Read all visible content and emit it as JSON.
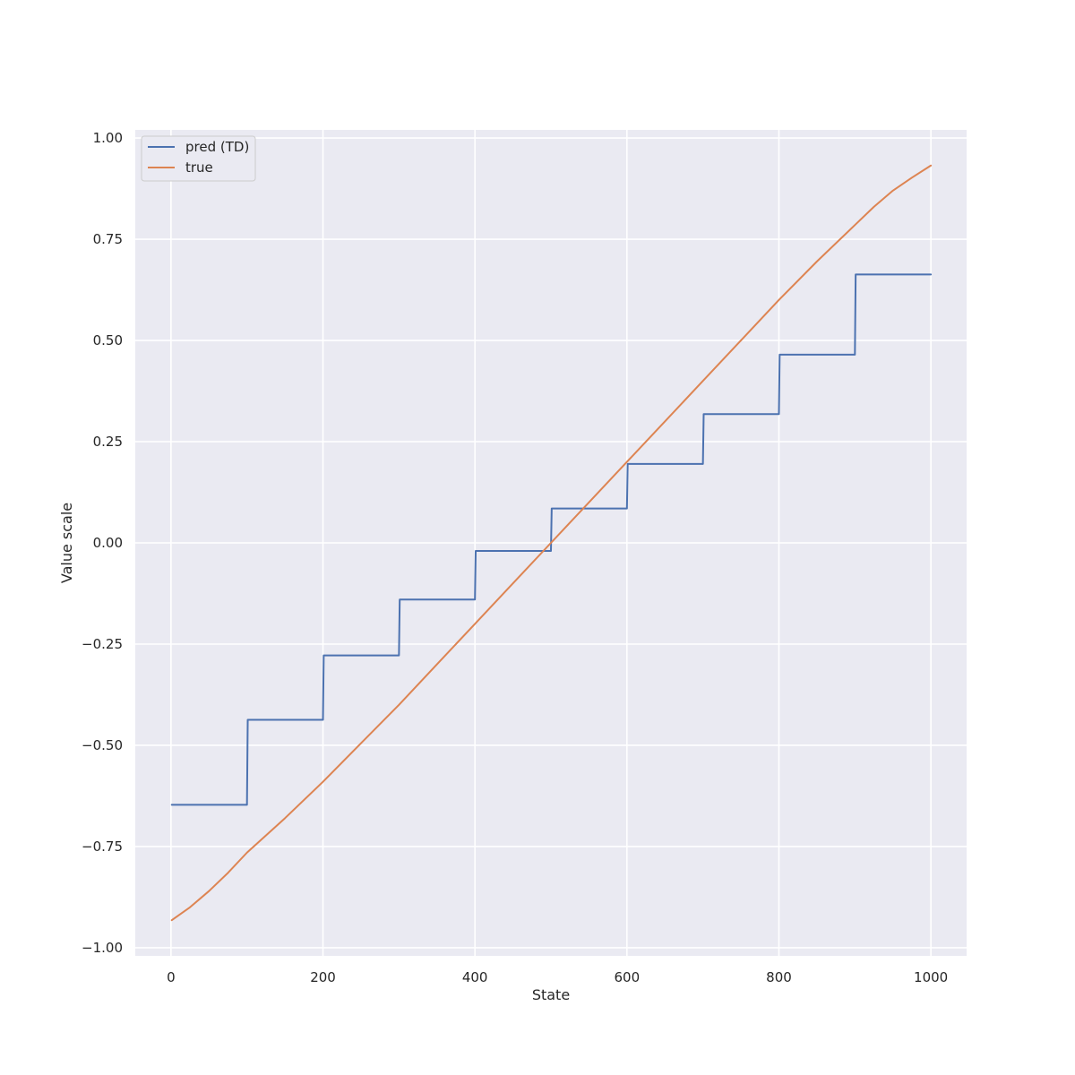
{
  "chart_data": {
    "type": "line",
    "title": "",
    "xlabel": "State",
    "ylabel": "Value scale",
    "xlim": [
      -47,
      1047
    ],
    "ylim": [
      -1.02,
      1.02
    ],
    "xticks": [
      0,
      200,
      400,
      600,
      800,
      1000
    ],
    "yticks": [
      -1.0,
      -0.75,
      -0.5,
      -0.25,
      0.0,
      0.25,
      0.5,
      0.75,
      1.0
    ],
    "xtick_labels": [
      "0",
      "200",
      "400",
      "600",
      "800",
      "1000"
    ],
    "ytick_labels": [
      "−1.00",
      "−0.75",
      "−0.50",
      "−0.25",
      "0.00",
      "0.25",
      "0.50",
      "0.75",
      "1.00"
    ],
    "grid": true,
    "legend_position": "top-left",
    "background": "#eaeaf2",
    "series": [
      {
        "name": "pred (TD)",
        "color": "#4c72b0",
        "x": [
          1,
          100,
          101,
          200,
          201,
          300,
          301,
          400,
          401,
          500,
          501,
          600,
          601,
          700,
          701,
          800,
          801,
          900,
          901,
          1000
        ],
        "y": [
          -0.647,
          -0.647,
          -0.437,
          -0.437,
          -0.278,
          -0.278,
          -0.14,
          -0.14,
          -0.02,
          -0.02,
          0.085,
          0.085,
          0.195,
          0.195,
          0.318,
          0.318,
          0.465,
          0.465,
          0.663,
          0.663
        ]
      },
      {
        "name": "true",
        "color": "#dd8452",
        "x": [
          1,
          25,
          50,
          75,
          100,
          150,
          200,
          250,
          300,
          350,
          400,
          450,
          500,
          550,
          600,
          650,
          700,
          750,
          800,
          850,
          900,
          925,
          950,
          975,
          1000
        ],
        "y": [
          -0.932,
          -0.9,
          -0.86,
          -0.815,
          -0.765,
          -0.68,
          -0.59,
          -0.495,
          -0.4,
          -0.3,
          -0.2,
          -0.1,
          0.0,
          0.1,
          0.2,
          0.3,
          0.4,
          0.5,
          0.6,
          0.695,
          0.785,
          0.83,
          0.87,
          0.902,
          0.932
        ]
      }
    ]
  }
}
